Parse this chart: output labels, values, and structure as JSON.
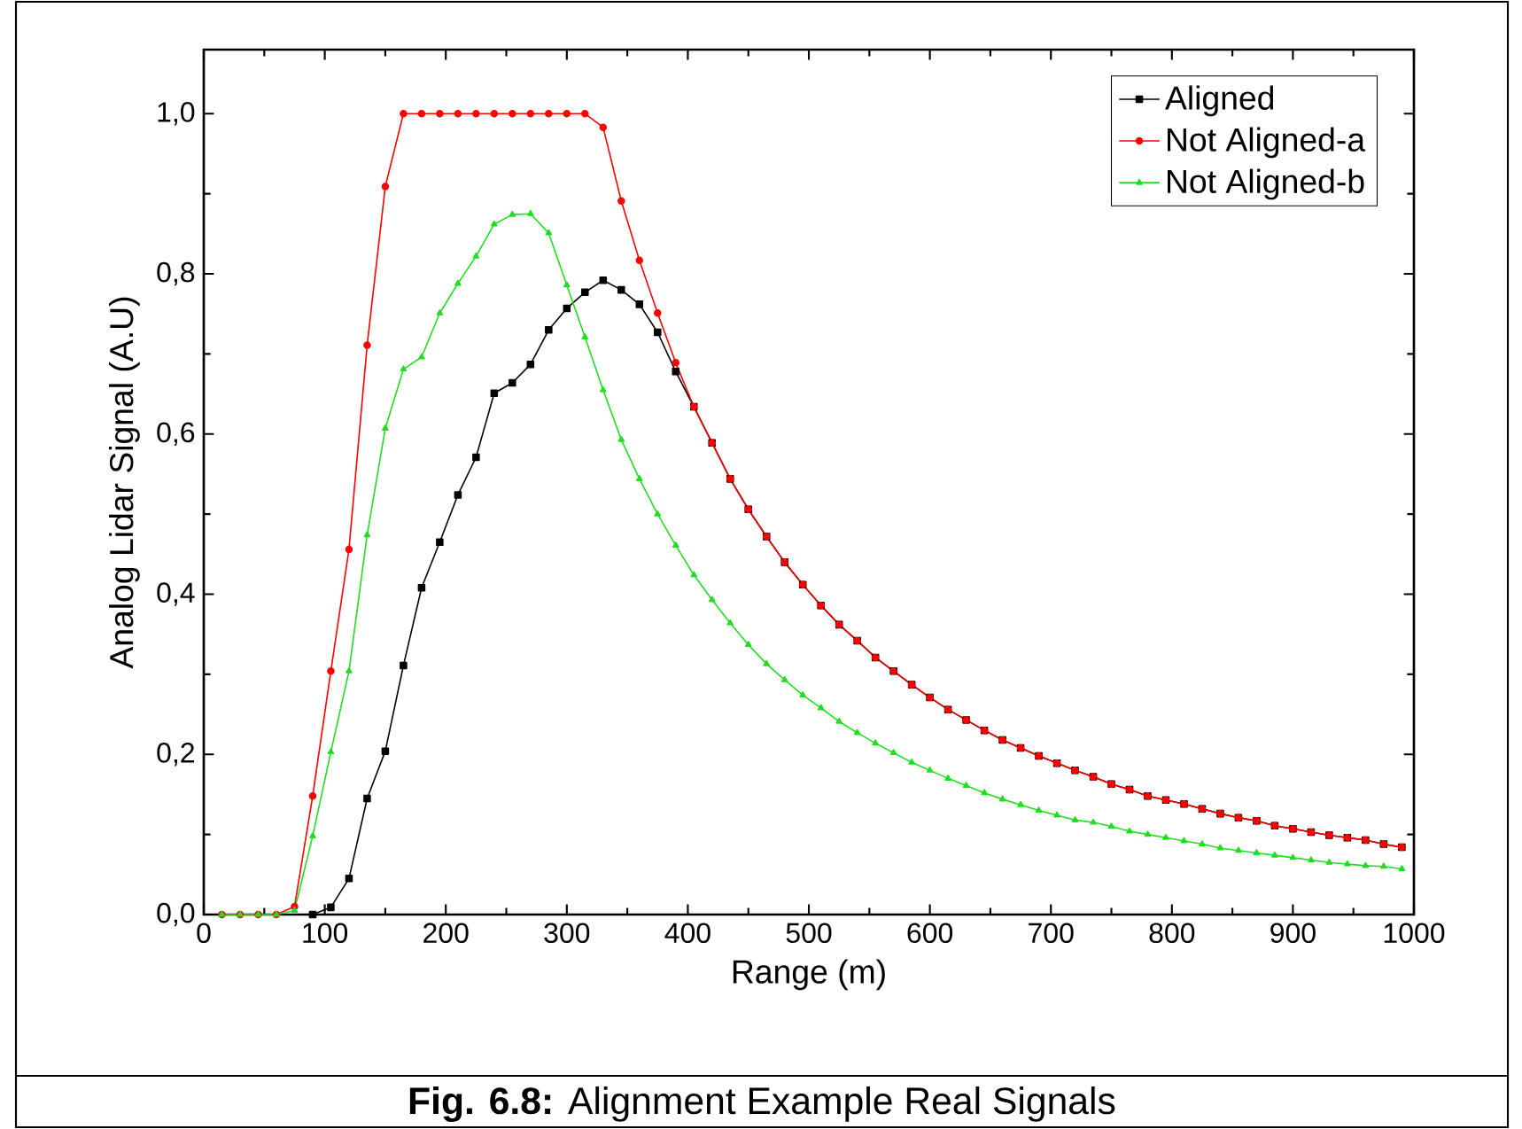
{
  "chart_data": {
    "type": "line",
    "xlabel": "Range (m)",
    "ylabel": "Analog Lidar Signal (A.U)",
    "annotations": [
      "**Fig. 6.8:** Alignment Example Real Signals"
    ],
    "xlim": [
      0,
      1000
    ],
    "xticks": [
      0,
      100,
      200,
      300,
      400,
      500,
      600,
      700,
      800,
      900,
      1000
    ],
    "ylim": [
      0,
      1.08
    ],
    "yticks": [
      {
        "value": 0,
        "label": "0,0"
      },
      {
        "value": 0.2,
        "label": "0,2"
      },
      {
        "value": 0.4,
        "label": "0,4"
      },
      {
        "value": 0.6,
        "label": "0,6"
      },
      {
        "value": 0.8,
        "label": "0,8"
      },
      {
        "value": 1,
        "label": "1,0"
      }
    ],
    "grid": false,
    "legend": "top right",
    "line_style": "solid",
    "x": [
      15,
      30,
      45,
      60,
      75,
      90,
      105,
      120,
      135,
      150,
      165,
      180,
      195,
      210,
      225,
      240,
      255,
      270,
      285,
      300,
      315,
      330,
      345,
      360,
      375,
      390,
      405,
      420,
      435,
      450,
      465,
      480,
      495,
      510,
      525,
      540,
      555,
      570,
      585,
      600,
      615,
      630,
      645,
      660,
      675,
      690,
      705,
      720,
      735,
      750,
      765,
      780,
      795,
      810,
      825,
      840,
      855,
      870,
      885,
      900,
      915,
      930,
      945,
      960,
      975,
      990
    ],
    "series": [
      {
        "name": "Aligned",
        "color": "#000000",
        "marker": "square",
        "x": [
          90,
          105,
          120,
          135,
          150,
          165,
          180,
          195,
          210,
          225,
          240,
          255,
          270,
          285,
          300,
          315,
          330,
          345,
          360,
          375,
          390,
          405,
          420,
          435,
          450,
          465,
          480,
          495,
          510,
          525,
          540,
          555,
          570,
          585,
          600,
          615,
          630,
          645,
          660,
          675,
          690,
          705,
          720,
          735,
          750,
          765,
          780,
          795,
          810,
          825,
          840,
          855,
          870,
          885,
          900,
          915,
          930,
          945,
          960,
          975,
          990
        ],
        "values": [
          0,
          0.009,
          0.045,
          0.145,
          0.204,
          0.311,
          0.408,
          0.465,
          0.524,
          0.571,
          0.651,
          0.664,
          0.687,
          0.73,
          0.757,
          0.777,
          0.792,
          0.78,
          0.762,
          0.727,
          0.678,
          0.634,
          0.589,
          0.544,
          0.506,
          0.472,
          0.44,
          0.412,
          0.386,
          0.362,
          0.342,
          0.321,
          0.304,
          0.287,
          0.271,
          0.256,
          0.243,
          0.23,
          0.218,
          0.208,
          0.198,
          0.189,
          0.18,
          0.172,
          0.163,
          0.156,
          0.148,
          0.143,
          0.138,
          0.132,
          0.126,
          0.121,
          0.117,
          0.111,
          0.107,
          0.103,
          0.099,
          0.096,
          0.093,
          0.088,
          0.084
        ]
      },
      {
        "name": "Not Aligned-a",
        "color": "#ff0000",
        "marker": "circle",
        "values": [
          0,
          0,
          0,
          0,
          0.01,
          0.148,
          0.304,
          0.456,
          0.711,
          0.909,
          1,
          1,
          1,
          1,
          1,
          1,
          1,
          1,
          1,
          1,
          1,
          0.983,
          0.891,
          0.817,
          0.751,
          0.689,
          0.634,
          0.589,
          0.544,
          0.506,
          0.472,
          0.44,
          0.412,
          0.386,
          0.362,
          0.342,
          0.321,
          0.304,
          0.287,
          0.271,
          0.256,
          0.243,
          0.23,
          0.218,
          0.208,
          0.198,
          0.189,
          0.18,
          0.172,
          0.163,
          0.156,
          0.148,
          0.143,
          0.138,
          0.132,
          0.126,
          0.121,
          0.117,
          0.111,
          0.107,
          0.103,
          0.099,
          0.096,
          0.093,
          0.088,
          0.084
        ]
      },
      {
        "name": "Not Aligned-b",
        "color": "#22dd22",
        "marker": "triangle",
        "values": [
          0,
          0,
          0,
          0,
          0.005,
          0.098,
          0.203,
          0.304,
          0.474,
          0.607,
          0.681,
          0.696,
          0.751,
          0.788,
          0.822,
          0.862,
          0.874,
          0.875,
          0.851,
          0.786,
          0.721,
          0.655,
          0.593,
          0.544,
          0.5,
          0.461,
          0.424,
          0.393,
          0.364,
          0.337,
          0.313,
          0.293,
          0.274,
          0.258,
          0.241,
          0.227,
          0.214,
          0.202,
          0.19,
          0.18,
          0.17,
          0.161,
          0.152,
          0.144,
          0.137,
          0.13,
          0.124,
          0.118,
          0.115,
          0.11,
          0.104,
          0.1,
          0.096,
          0.092,
          0.088,
          0.083,
          0.08,
          0.077,
          0.074,
          0.071,
          0.068,
          0.065,
          0.063,
          0.061,
          0.06,
          0.057
        ]
      }
    ]
  }
}
